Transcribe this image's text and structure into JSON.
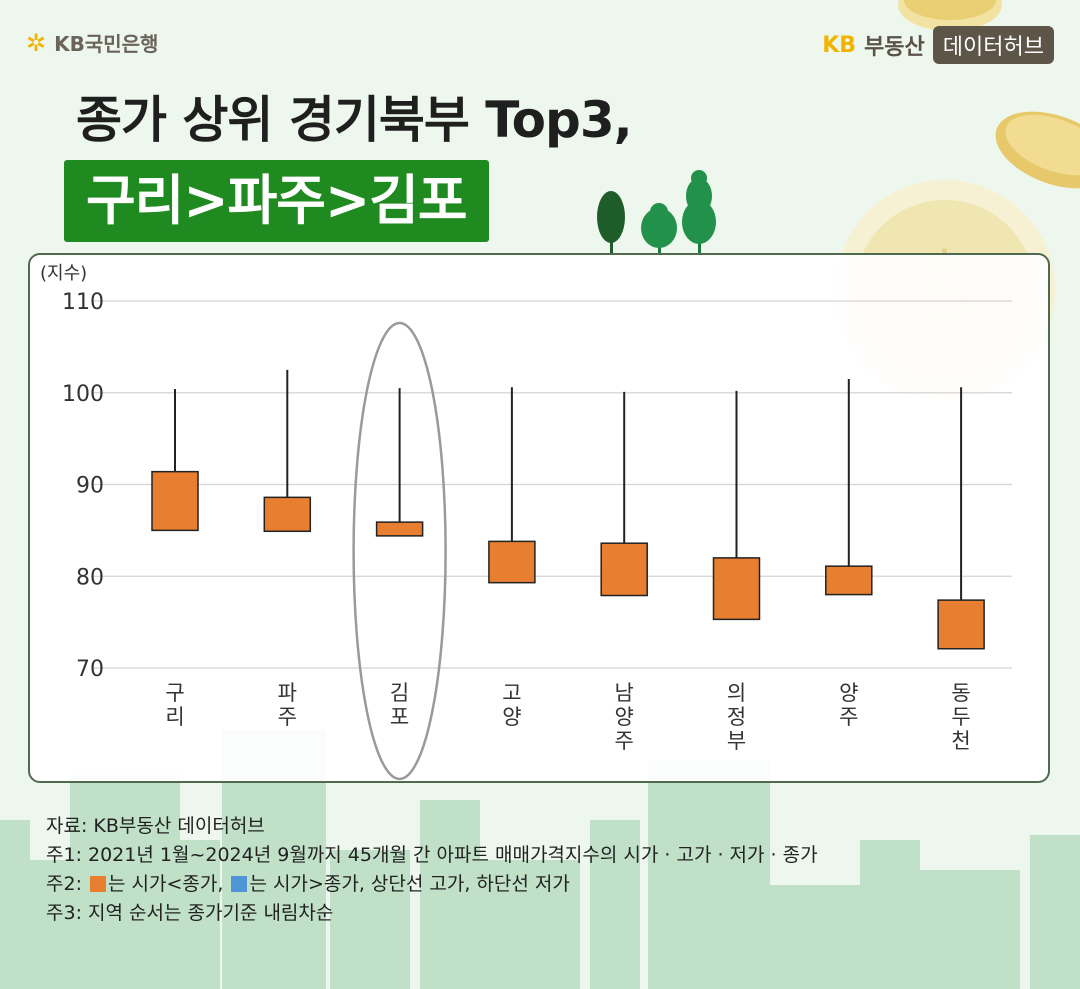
{
  "header": {
    "bank_logo": "KB국민은행",
    "hub_logo_kb": "KB",
    "hub_logo_name": "부동산",
    "hub_logo_tag": "데이터허브"
  },
  "title": {
    "line1": "종가 상위 경기북부 Top3,",
    "line2": "구리>파주>김포"
  },
  "colors": {
    "up": "#e87e30",
    "down": "#4f94d4",
    "title_bg": "#1f8a1f",
    "highlight_ring": "#9a9a9a"
  },
  "chart_data": {
    "type": "candlestick",
    "ylabel": "(지수)",
    "ylim": [
      70,
      110
    ],
    "yticks": [
      70,
      80,
      90,
      100,
      110
    ],
    "grid": true,
    "categories": [
      "구리",
      "파주",
      "김포",
      "고양",
      "남양주",
      "의정부",
      "양주",
      "동두천"
    ],
    "candles": [
      {
        "region": "구리",
        "open": 85.0,
        "close": 91.4,
        "high": 100.4,
        "low": 85.0
      },
      {
        "region": "파주",
        "open": 84.9,
        "close": 88.6,
        "high": 102.5,
        "low": 84.9
      },
      {
        "region": "김포",
        "open": 84.4,
        "close": 85.9,
        "high": 100.5,
        "low": 84.4
      },
      {
        "region": "고양",
        "open": 79.3,
        "close": 83.8,
        "high": 100.6,
        "low": 79.3
      },
      {
        "region": "남양주",
        "open": 77.9,
        "close": 83.6,
        "high": 100.1,
        "low": 77.9
      },
      {
        "region": "의정부",
        "open": 75.3,
        "close": 82.0,
        "high": 100.2,
        "low": 75.3
      },
      {
        "region": "양주",
        "open": 78.0,
        "close": 81.1,
        "high": 101.5,
        "low": 78.0
      },
      {
        "region": "동두천",
        "open": 72.1,
        "close": 77.4,
        "high": 100.6,
        "low": 72.1
      }
    ],
    "highlight": "김포"
  },
  "notes": {
    "source": "자료: KB부동산 데이터허브",
    "note1": "주1: 2021년 1월~2024년 9월까지 45개월 간 아파트 매매가격지수의 시가 · 고가 · 저가 · 종가",
    "note2_prefix": "주2: ",
    "note2_mid": "는 시가<종가, ",
    "note2_suffix": "는 시가>종가, 상단선 고가, 하단선 저가",
    "note3": "주3: 지역 순서는 종가기준 내림차순"
  }
}
